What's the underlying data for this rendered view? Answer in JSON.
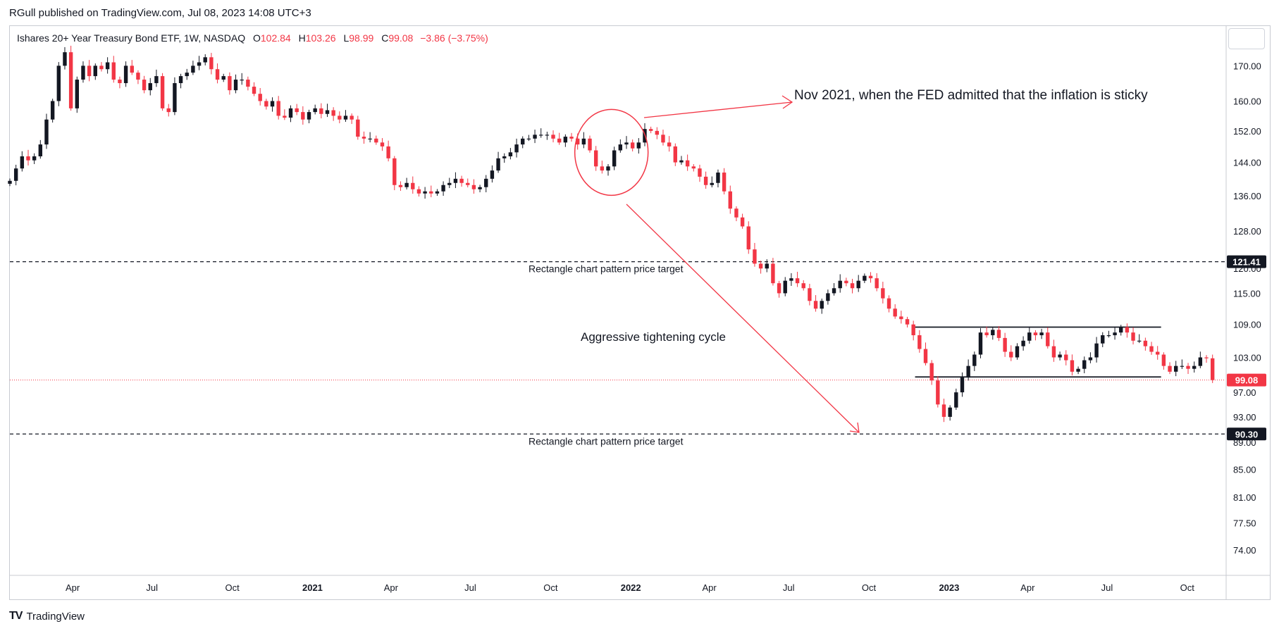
{
  "publisher": "RGull published on TradingView.com, Jul 08, 2023 14:08 UTC+3",
  "legend": {
    "title": "Ishares 20+ Year Treasury Bond ETF, 1W, NASDAQ",
    "o_label": "O",
    "o": "102.84",
    "h_label": "H",
    "h": "103.26",
    "l_label": "L",
    "l": "98.99",
    "c_label": "C",
    "c": "99.08",
    "change": "−3.86 (−3.75%)"
  },
  "footer": {
    "logo": "TV",
    "brand": "TradingView"
  },
  "colors": {
    "up": "#131722",
    "down": "#f23645",
    "annotation": "#f23645",
    "grid": "#e0e3eb"
  },
  "chart_data": {
    "type": "candlestick",
    "symbol": "Ishares 20+ Year Treasury Bond ETF",
    "interval": "1W",
    "exchange": "NASDAQ",
    "yscale": "log",
    "ylim": [
      71.0,
      182.0
    ],
    "xlim": [
      "2020-01-20",
      "2023-11-13"
    ],
    "y_ticks": [
      "170.00",
      "160.00",
      "152.00",
      "144.00",
      "136.00",
      "128.00",
      "120.00",
      "115.00",
      "109.00",
      "103.00",
      "97.00",
      "93.00",
      "89.00",
      "85.00",
      "81.00",
      "77.50",
      "74.00"
    ],
    "x_ticks": [
      {
        "label": "Apr",
        "date": "2020-04-01",
        "bold": false
      },
      {
        "label": "Jul",
        "date": "2020-07-01",
        "bold": false
      },
      {
        "label": "Oct",
        "date": "2020-10-01",
        "bold": false
      },
      {
        "label": "2021",
        "date": "2021-01-01",
        "bold": true
      },
      {
        "label": "Apr",
        "date": "2021-04-01",
        "bold": false
      },
      {
        "label": "Jul",
        "date": "2021-07-01",
        "bold": false
      },
      {
        "label": "Oct",
        "date": "2021-10-01",
        "bold": false
      },
      {
        "label": "2022",
        "date": "2022-01-01",
        "bold": true
      },
      {
        "label": "Apr",
        "date": "2022-04-01",
        "bold": false
      },
      {
        "label": "Jul",
        "date": "2022-07-01",
        "bold": false
      },
      {
        "label": "Oct",
        "date": "2022-10-01",
        "bold": false
      },
      {
        "label": "2023",
        "date": "2023-01-01",
        "bold": true
      },
      {
        "label": "Apr",
        "date": "2023-04-01",
        "bold": false
      },
      {
        "label": "Jul",
        "date": "2023-07-01",
        "bold": false
      },
      {
        "label": "Oct",
        "date": "2023-10-01",
        "bold": false
      }
    ],
    "first_week": "2020-01-20",
    "closes": [
      139.5,
      142.5,
      145.5,
      144.5,
      145.5,
      148.5,
      155.0,
      160.0,
      170.0,
      174.0,
      158.0,
      166.0,
      170.0,
      167.0,
      170.0,
      169.0,
      171.0,
      166.0,
      165.0,
      170.0,
      168.0,
      166.0,
      163.0,
      165.0,
      167.0,
      158.0,
      157.0,
      165.0,
      167.0,
      168.0,
      170.0,
      171.0,
      172.5,
      169.0,
      166.0,
      167.0,
      163.0,
      166.0,
      166.0,
      164.0,
      162.0,
      160.0,
      158.5,
      160.0,
      156.0,
      155.5,
      158.0,
      157.0,
      155.0,
      157.0,
      158.0,
      156.5,
      157.5,
      156.0,
      155.0,
      156.0,
      155.0,
      150.5,
      150.0,
      150.0,
      149.0,
      148.0,
      145.0,
      138.5,
      138.0,
      139.0,
      137.5,
      136.5,
      137.0,
      136.5,
      137.0,
      138.5,
      139.0,
      140.0,
      139.0,
      138.5,
      137.5,
      138.0,
      140.0,
      142.0,
      145.0,
      145.5,
      146.5,
      148.5,
      150.0,
      150.0,
      151.0,
      151.0,
      151.0,
      150.0,
      149.0,
      150.5,
      150.0,
      148.5,
      150.0,
      147.0,
      143.0,
      142.0,
      143.0,
      147.0,
      148.5,
      149.0,
      147.5,
      149.0,
      152.5,
      152.0,
      151.0,
      149.0,
      148.0,
      144.0,
      144.5,
      143.0,
      142.5,
      140.5,
      138.5,
      139.0,
      141.5,
      137.0,
      133.0,
      131.0,
      129.0,
      124.0,
      121.0,
      120.0,
      121.0,
      117.0,
      115.0,
      117.5,
      118.0,
      117.0,
      116.0,
      113.5,
      112.0,
      113.5,
      115.0,
      116.0,
      117.5,
      117.0,
      116.0,
      117.5,
      118.5,
      118.0,
      116.0,
      114.0,
      112.0,
      110.5,
      110.0,
      109.0,
      107.0,
      104.5,
      102.0,
      99.0,
      95.0,
      93.0,
      94.5,
      97.0,
      99.5,
      101.5,
      103.5,
      107.5,
      107.0,
      108.0,
      106.5,
      104.0,
      103.0,
      105.0,
      106.0,
      107.5,
      107.0,
      107.5,
      105.0,
      103.0,
      103.5,
      102.5,
      100.5,
      101.0,
      102.5,
      103.0,
      105.5,
      107.0,
      107.0,
      107.5,
      108.5,
      107.5,
      106.0,
      106.0,
      105.0,
      104.0,
      103.5,
      101.5,
      100.5,
      101.5,
      101.5,
      101.0,
      101.5,
      103.0,
      102.84,
      99.08
    ],
    "annotations": [
      {
        "type": "text",
        "label": "Nov 2021, when the FED admitted that the inflation is sticky"
      },
      {
        "type": "text",
        "label": "Aggressive tightening cycle"
      },
      {
        "type": "hline",
        "price": 121.41,
        "style": "dashed",
        "label": "Rectangle chart pattern price target"
      },
      {
        "type": "hline",
        "price": 90.3,
        "style": "dashed",
        "label": "Rectangle chart pattern price target"
      },
      {
        "type": "hline",
        "price": 99.08,
        "style": "dotted",
        "last_price": true
      },
      {
        "type": "rectangle_line",
        "price": 108.5,
        "from": "2022-12-01",
        "to": "2023-09-01"
      },
      {
        "type": "rectangle_line",
        "price": 99.6,
        "from": "2022-12-01",
        "to": "2023-09-01"
      },
      {
        "type": "circle",
        "around": "Nov 2021"
      },
      {
        "type": "arrow",
        "from": "Nov 2021",
        "to": "note"
      },
      {
        "type": "arrow",
        "from": "2022-01",
        "to": "2022-11"
      }
    ],
    "price_labels": [
      {
        "price": 121.41,
        "text": "121.41",
        "color": "#131722"
      },
      {
        "price": 99.08,
        "text": "99.08",
        "color": "#f23645"
      },
      {
        "price": 90.3,
        "text": "90.30",
        "color": "#131722"
      }
    ]
  }
}
